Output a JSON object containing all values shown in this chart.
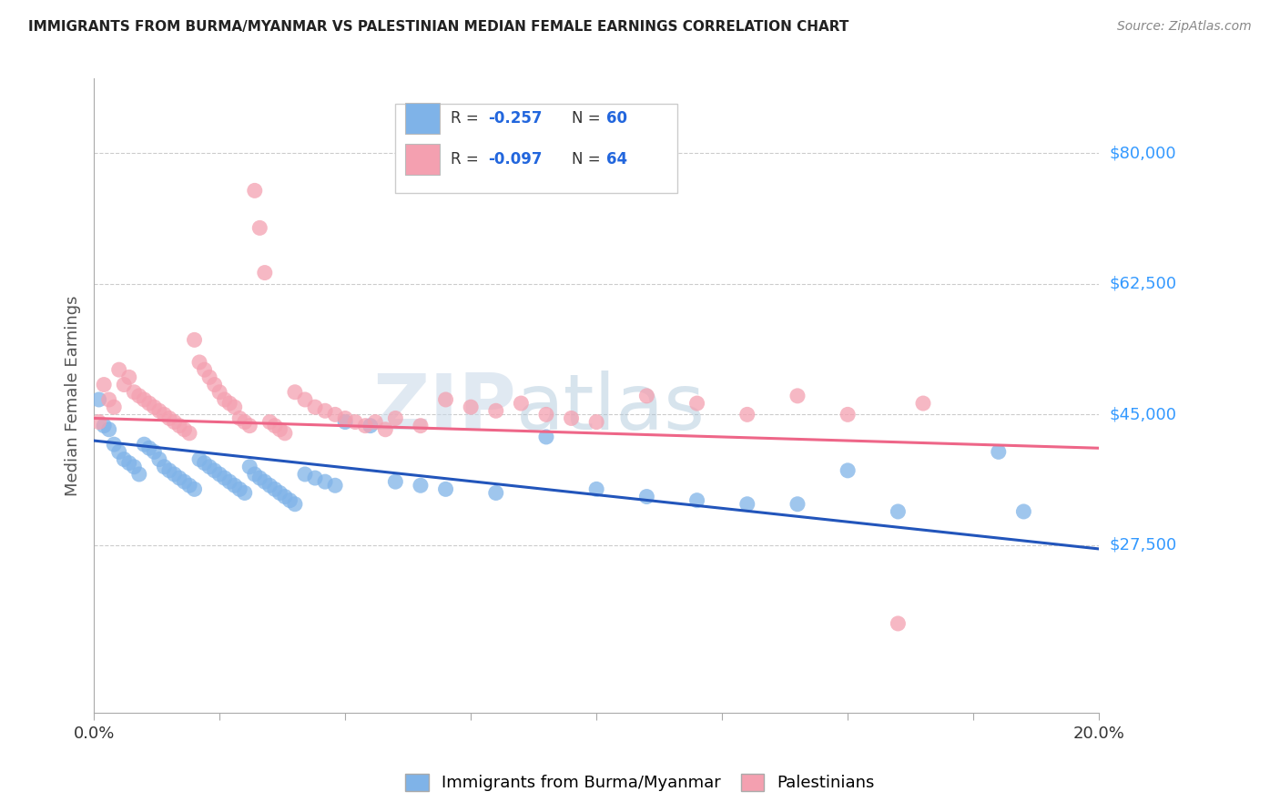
{
  "title": "IMMIGRANTS FROM BURMA/MYANMAR VS PALESTINIAN MEDIAN FEMALE EARNINGS CORRELATION CHART",
  "source": "Source: ZipAtlas.com",
  "ylabel": "Median Female Earnings",
  "xmin": 0.0,
  "xmax": 0.2,
  "ymin": 5000,
  "ymax": 90000,
  "watermark": "ZIPatlas",
  "blue_color": "#7FB3E8",
  "pink_color": "#F4A0B0",
  "blue_line_color": "#2255BB",
  "pink_line_color": "#EE6688",
  "blue_scatter": [
    [
      0.001,
      47000
    ],
    [
      0.002,
      43500
    ],
    [
      0.003,
      43000
    ],
    [
      0.004,
      41000
    ],
    [
      0.005,
      40000
    ],
    [
      0.006,
      39000
    ],
    [
      0.007,
      38500
    ],
    [
      0.008,
      38000
    ],
    [
      0.009,
      37000
    ],
    [
      0.01,
      41000
    ],
    [
      0.011,
      40500
    ],
    [
      0.012,
      40000
    ],
    [
      0.013,
      39000
    ],
    [
      0.014,
      38000
    ],
    [
      0.015,
      37500
    ],
    [
      0.016,
      37000
    ],
    [
      0.017,
      36500
    ],
    [
      0.018,
      36000
    ],
    [
      0.019,
      35500
    ],
    [
      0.02,
      35000
    ],
    [
      0.021,
      39000
    ],
    [
      0.022,
      38500
    ],
    [
      0.023,
      38000
    ],
    [
      0.024,
      37500
    ],
    [
      0.025,
      37000
    ],
    [
      0.026,
      36500
    ],
    [
      0.027,
      36000
    ],
    [
      0.028,
      35500
    ],
    [
      0.029,
      35000
    ],
    [
      0.03,
      34500
    ],
    [
      0.031,
      38000
    ],
    [
      0.032,
      37000
    ],
    [
      0.033,
      36500
    ],
    [
      0.034,
      36000
    ],
    [
      0.035,
      35500
    ],
    [
      0.036,
      35000
    ],
    [
      0.037,
      34500
    ],
    [
      0.038,
      34000
    ],
    [
      0.039,
      33500
    ],
    [
      0.04,
      33000
    ],
    [
      0.042,
      37000
    ],
    [
      0.044,
      36500
    ],
    [
      0.046,
      36000
    ],
    [
      0.048,
      35500
    ],
    [
      0.05,
      44000
    ],
    [
      0.055,
      43500
    ],
    [
      0.06,
      36000
    ],
    [
      0.065,
      35500
    ],
    [
      0.07,
      35000
    ],
    [
      0.08,
      34500
    ],
    [
      0.09,
      42000
    ],
    [
      0.1,
      35000
    ],
    [
      0.11,
      34000
    ],
    [
      0.12,
      33500
    ],
    [
      0.13,
      33000
    ],
    [
      0.14,
      33000
    ],
    [
      0.15,
      37500
    ],
    [
      0.16,
      32000
    ],
    [
      0.18,
      40000
    ],
    [
      0.185,
      32000
    ]
  ],
  "pink_scatter": [
    [
      0.001,
      44000
    ],
    [
      0.002,
      49000
    ],
    [
      0.003,
      47000
    ],
    [
      0.004,
      46000
    ],
    [
      0.005,
      51000
    ],
    [
      0.006,
      49000
    ],
    [
      0.007,
      50000
    ],
    [
      0.008,
      48000
    ],
    [
      0.009,
      47500
    ],
    [
      0.01,
      47000
    ],
    [
      0.011,
      46500
    ],
    [
      0.012,
      46000
    ],
    [
      0.013,
      45500
    ],
    [
      0.014,
      45000
    ],
    [
      0.015,
      44500
    ],
    [
      0.016,
      44000
    ],
    [
      0.017,
      43500
    ],
    [
      0.018,
      43000
    ],
    [
      0.019,
      42500
    ],
    [
      0.02,
      55000
    ],
    [
      0.021,
      52000
    ],
    [
      0.022,
      51000
    ],
    [
      0.023,
      50000
    ],
    [
      0.024,
      49000
    ],
    [
      0.025,
      48000
    ],
    [
      0.026,
      47000
    ],
    [
      0.027,
      46500
    ],
    [
      0.028,
      46000
    ],
    [
      0.029,
      44500
    ],
    [
      0.03,
      44000
    ],
    [
      0.031,
      43500
    ],
    [
      0.032,
      75000
    ],
    [
      0.033,
      70000
    ],
    [
      0.034,
      64000
    ],
    [
      0.035,
      44000
    ],
    [
      0.036,
      43500
    ],
    [
      0.037,
      43000
    ],
    [
      0.038,
      42500
    ],
    [
      0.04,
      48000
    ],
    [
      0.042,
      47000
    ],
    [
      0.044,
      46000
    ],
    [
      0.046,
      45500
    ],
    [
      0.048,
      45000
    ],
    [
      0.05,
      44500
    ],
    [
      0.052,
      44000
    ],
    [
      0.054,
      43500
    ],
    [
      0.056,
      44000
    ],
    [
      0.058,
      43000
    ],
    [
      0.06,
      44500
    ],
    [
      0.065,
      43500
    ],
    [
      0.07,
      47000
    ],
    [
      0.075,
      46000
    ],
    [
      0.08,
      45500
    ],
    [
      0.085,
      46500
    ],
    [
      0.09,
      45000
    ],
    [
      0.095,
      44500
    ],
    [
      0.1,
      44000
    ],
    [
      0.11,
      47500
    ],
    [
      0.12,
      46500
    ],
    [
      0.13,
      45000
    ],
    [
      0.14,
      47500
    ],
    [
      0.15,
      45000
    ],
    [
      0.16,
      17000
    ],
    [
      0.165,
      46500
    ]
  ],
  "blue_trendline": [
    [
      0.0,
      41500
    ],
    [
      0.2,
      27000
    ]
  ],
  "pink_trendline": [
    [
      0.0,
      44500
    ],
    [
      0.2,
      40500
    ]
  ],
  "background_color": "#FFFFFF",
  "grid_color": "#CCCCCC",
  "title_color": "#222222",
  "axis_label_color": "#555555",
  "ytick_color": "#3399FF",
  "xtick_color": "#333333",
  "ytick_values": [
    27500,
    45000,
    62500,
    80000
  ],
  "ytick_labels": [
    "$27,500",
    "$45,000",
    "$62,500",
    "$80,000"
  ],
  "xtick_values": [
    0.0,
    0.025,
    0.05,
    0.075,
    0.1,
    0.125,
    0.15,
    0.175,
    0.2
  ],
  "legend_items": [
    {
      "color": "#7FB3E8",
      "R": "-0.257",
      "N": "60"
    },
    {
      "color": "#F4A0B0",
      "R": "-0.097",
      "N": "64"
    }
  ]
}
